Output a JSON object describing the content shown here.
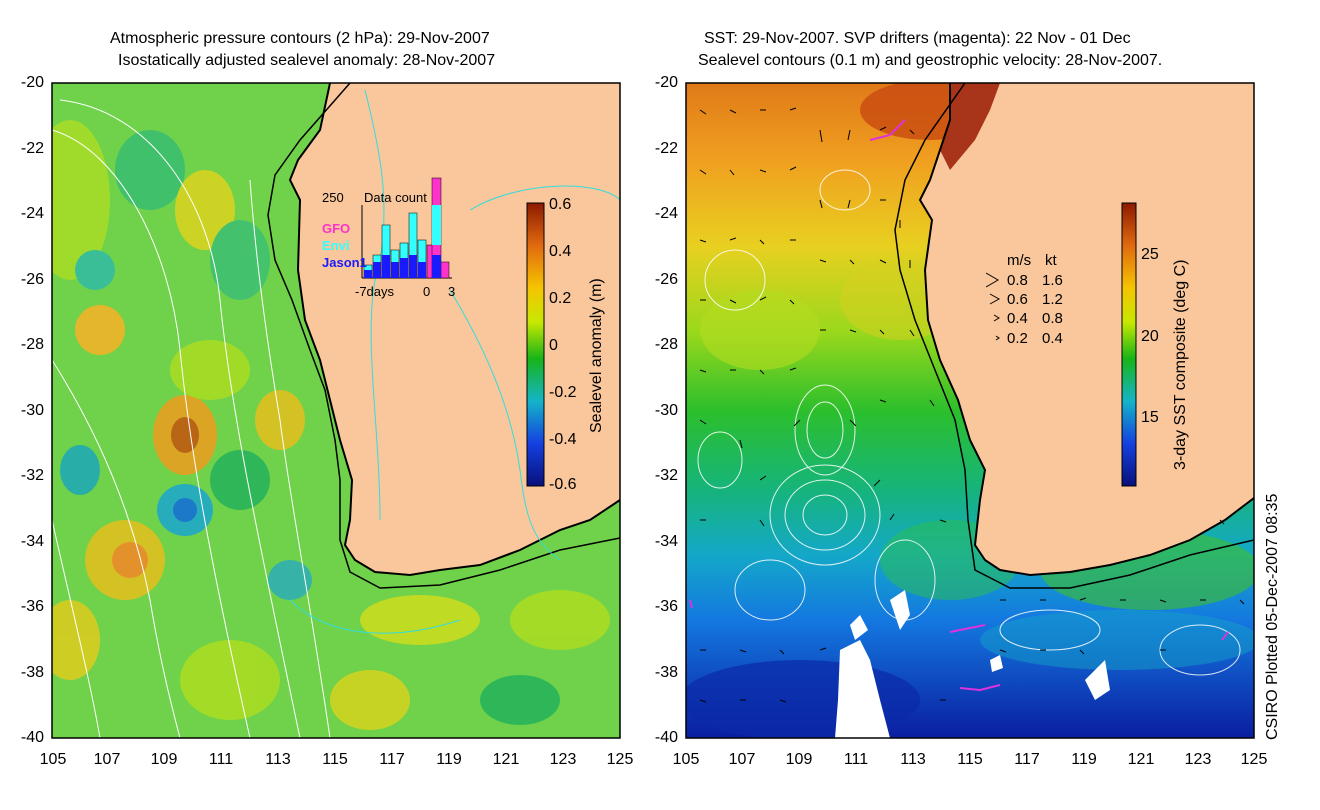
{
  "left_panel": {
    "title_line1": "Atmospheric pressure contours (2 hPa): 29-Nov-2007",
    "title_line2": "Isostatically adjusted sealevel anomaly: 28-Nov-2007",
    "y_ticks": [
      "-20",
      "-22",
      "-24",
      "-26",
      "-28",
      "-30",
      "-32",
      "-34",
      "-36",
      "-38",
      "-40"
    ],
    "x_ticks": [
      "105",
      "107",
      "109",
      "111",
      "113",
      "115",
      "117",
      "119",
      "121",
      "123",
      "125"
    ],
    "colorbar": {
      "label": "Sealevel anomaly (m)",
      "ticks": [
        "0.6",
        "0.4",
        "0.2",
        "0",
        "-0.2",
        "-0.4",
        "-0.6"
      ]
    },
    "inset": {
      "max_label": "250",
      "title": "Data count",
      "legend": [
        {
          "name": "GFO",
          "color": "#ff33cc"
        },
        {
          "name": "Envi",
          "color": "#33ffff"
        },
        {
          "name": "Jason1",
          "color": "#1a1aff"
        }
      ],
      "x_labels": [
        "-7days",
        "0",
        "3"
      ]
    }
  },
  "right_panel": {
    "title_line1": "SST: 29-Nov-2007. SVP drifters (magenta): 22 Nov - 01 Dec",
    "title_line2": "Sealevel contours (0.1 m) and geostrophic velocity: 28-Nov-2007.",
    "y_ticks": [
      "-20",
      "-22",
      "-24",
      "-26",
      "-28",
      "-30",
      "-32",
      "-34",
      "-36",
      "-38",
      "-40"
    ],
    "x_ticks": [
      "105",
      "107",
      "109",
      "111",
      "113",
      "115",
      "117",
      "119",
      "121",
      "123",
      "125"
    ],
    "colorbar": {
      "label": "3-day SST composite (deg C)",
      "ticks": [
        "25",
        "20",
        "15"
      ]
    },
    "velocity_legend": {
      "header_ms": "m/s",
      "header_kt": "kt",
      "rows": [
        {
          "ms": "0.8",
          "kt": "1.6"
        },
        {
          "ms": "0.6",
          "kt": "1.2"
        },
        {
          "ms": "0.4",
          "kt": "0.8"
        },
        {
          "ms": "0.2",
          "kt": "0.4"
        }
      ]
    }
  },
  "footer_credit": "CSIRO Plotted 05-Dec-2007 08:35",
  "colors": {
    "land": "#f9c79b",
    "coast": "#000000",
    "pressure_contour": "#ffffff",
    "cyan_contour": "#33dddd",
    "drifter": "#dd33dd"
  }
}
